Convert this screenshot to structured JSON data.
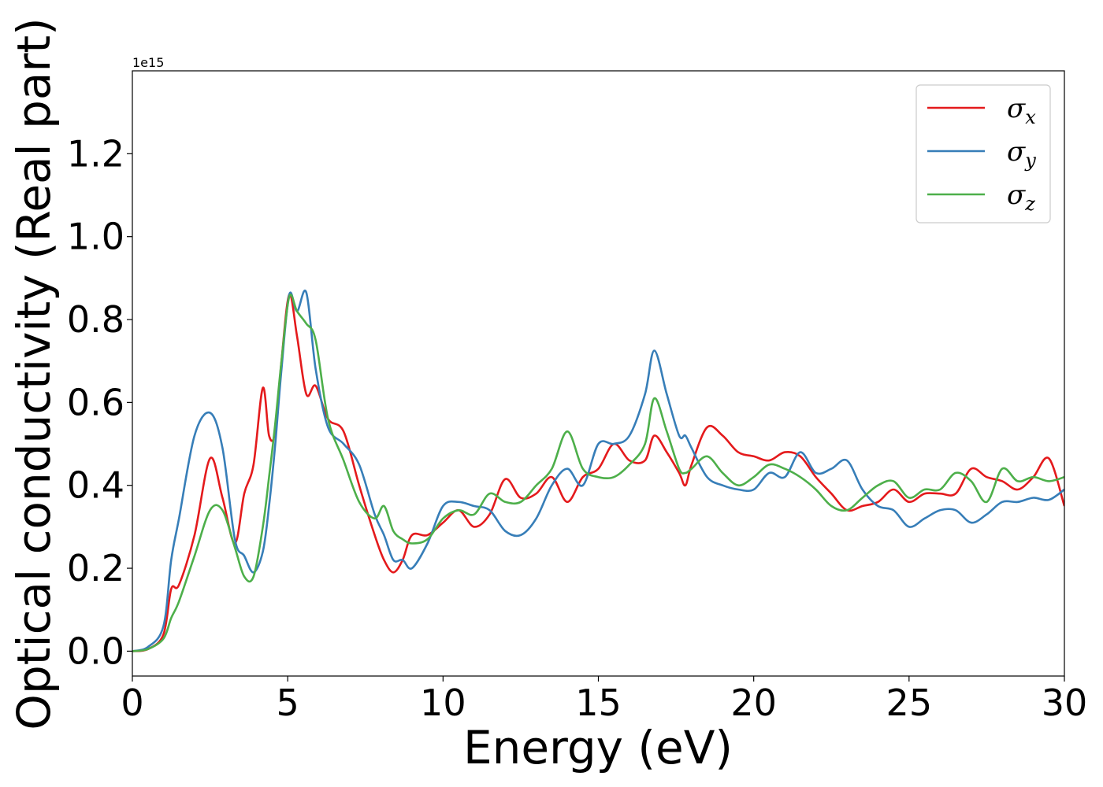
{
  "chart_data": {
    "type": "line",
    "xlabel": "Energy (eV)",
    "ylabel": "Optical conductivity (Real part)",
    "y_offset_label": "1e15",
    "xlim": [
      0,
      30
    ],
    "ylim": [
      -0.06,
      1.4
    ],
    "xticks": [
      0,
      5,
      10,
      15,
      20,
      25,
      30
    ],
    "xtick_labels": [
      "0",
      "5",
      "10",
      "15",
      "20",
      "25",
      "30"
    ],
    "yticks": [
      0.0,
      0.2,
      0.4,
      0.6,
      0.8,
      1.0,
      1.2
    ],
    "ytick_labels": [
      "0.0",
      "0.2",
      "0.4",
      "0.6",
      "0.8",
      "1.0",
      "1.2"
    ],
    "grid": false,
    "legend_position": "top-right",
    "x": [
      0,
      0.5,
      1,
      1.25,
      1.5,
      2,
      2.5,
      2.9,
      3.3,
      3.6,
      3.9,
      4.2,
      4.4,
      4.6,
      4.8,
      5.05,
      5.3,
      5.6,
      5.9,
      6.3,
      6.8,
      7.3,
      7.8,
      8.1,
      8.4,
      8.7,
      9,
      9.5,
      10,
      10.5,
      11,
      11.5,
      12,
      12.5,
      13,
      13.5,
      14,
      14.5,
      15,
      15.5,
      16,
      16.5,
      16.8,
      17.2,
      17.6,
      17.8,
      18,
      18.5,
      19,
      19.5,
      20,
      20.5,
      21,
      21.5,
      22,
      22.5,
      23,
      23.5,
      24,
      24.5,
      25,
      25.5,
      26,
      26.5,
      27,
      27.5,
      28,
      28.5,
      29,
      29.5,
      30
    ],
    "series": [
      {
        "name": "x",
        "color": "#e41a1c",
        "values": [
          0,
          0.005,
          0.04,
          0.15,
          0.16,
          0.28,
          0.465,
          0.37,
          0.26,
          0.38,
          0.45,
          0.635,
          0.52,
          0.53,
          0.7,
          0.86,
          0.76,
          0.62,
          0.64,
          0.56,
          0.53,
          0.4,
          0.28,
          0.22,
          0.19,
          0.22,
          0.28,
          0.28,
          0.31,
          0.34,
          0.3,
          0.33,
          0.415,
          0.37,
          0.38,
          0.42,
          0.36,
          0.42,
          0.44,
          0.5,
          0.46,
          0.46,
          0.52,
          0.48,
          0.43,
          0.4,
          0.45,
          0.54,
          0.52,
          0.48,
          0.47,
          0.46,
          0.48,
          0.47,
          0.42,
          0.38,
          0.34,
          0.35,
          0.36,
          0.39,
          0.36,
          0.38,
          0.38,
          0.38,
          0.44,
          0.42,
          0.41,
          0.39,
          0.42,
          0.465,
          0.35
        ]
      },
      {
        "name": "y",
        "color": "#377eb8",
        "values": [
          0,
          0.01,
          0.06,
          0.22,
          0.32,
          0.52,
          0.575,
          0.49,
          0.27,
          0.23,
          0.19,
          0.24,
          0.35,
          0.5,
          0.68,
          0.86,
          0.82,
          0.865,
          0.68,
          0.54,
          0.5,
          0.45,
          0.33,
          0.28,
          0.22,
          0.22,
          0.2,
          0.26,
          0.35,
          0.36,
          0.35,
          0.34,
          0.29,
          0.28,
          0.32,
          0.4,
          0.44,
          0.4,
          0.5,
          0.5,
          0.52,
          0.62,
          0.725,
          0.62,
          0.52,
          0.52,
          0.49,
          0.42,
          0.4,
          0.39,
          0.39,
          0.43,
          0.42,
          0.48,
          0.43,
          0.44,
          0.46,
          0.39,
          0.35,
          0.34,
          0.3,
          0.32,
          0.34,
          0.34,
          0.31,
          0.33,
          0.36,
          0.36,
          0.37,
          0.365,
          0.39
        ]
      },
      {
        "name": "z",
        "color": "#4daf4a",
        "values": [
          0,
          0.005,
          0.03,
          0.08,
          0.12,
          0.23,
          0.34,
          0.34,
          0.25,
          0.18,
          0.18,
          0.3,
          0.42,
          0.55,
          0.7,
          0.855,
          0.82,
          0.79,
          0.75,
          0.56,
          0.46,
          0.36,
          0.32,
          0.35,
          0.29,
          0.27,
          0.26,
          0.27,
          0.32,
          0.34,
          0.33,
          0.38,
          0.36,
          0.36,
          0.4,
          0.44,
          0.53,
          0.44,
          0.42,
          0.42,
          0.45,
          0.5,
          0.61,
          0.53,
          0.44,
          0.43,
          0.44,
          0.47,
          0.43,
          0.4,
          0.42,
          0.45,
          0.44,
          0.42,
          0.39,
          0.35,
          0.34,
          0.37,
          0.4,
          0.41,
          0.37,
          0.39,
          0.39,
          0.43,
          0.41,
          0.36,
          0.44,
          0.41,
          0.42,
          0.41,
          0.42
        ]
      }
    ]
  },
  "legend": {
    "entries": [
      {
        "symbol": "σ",
        "subscript": "x",
        "color": "#e41a1c"
      },
      {
        "symbol": "σ",
        "subscript": "y",
        "color": "#377eb8"
      },
      {
        "symbol": "σ",
        "subscript": "z",
        "color": "#4daf4a"
      }
    ]
  }
}
